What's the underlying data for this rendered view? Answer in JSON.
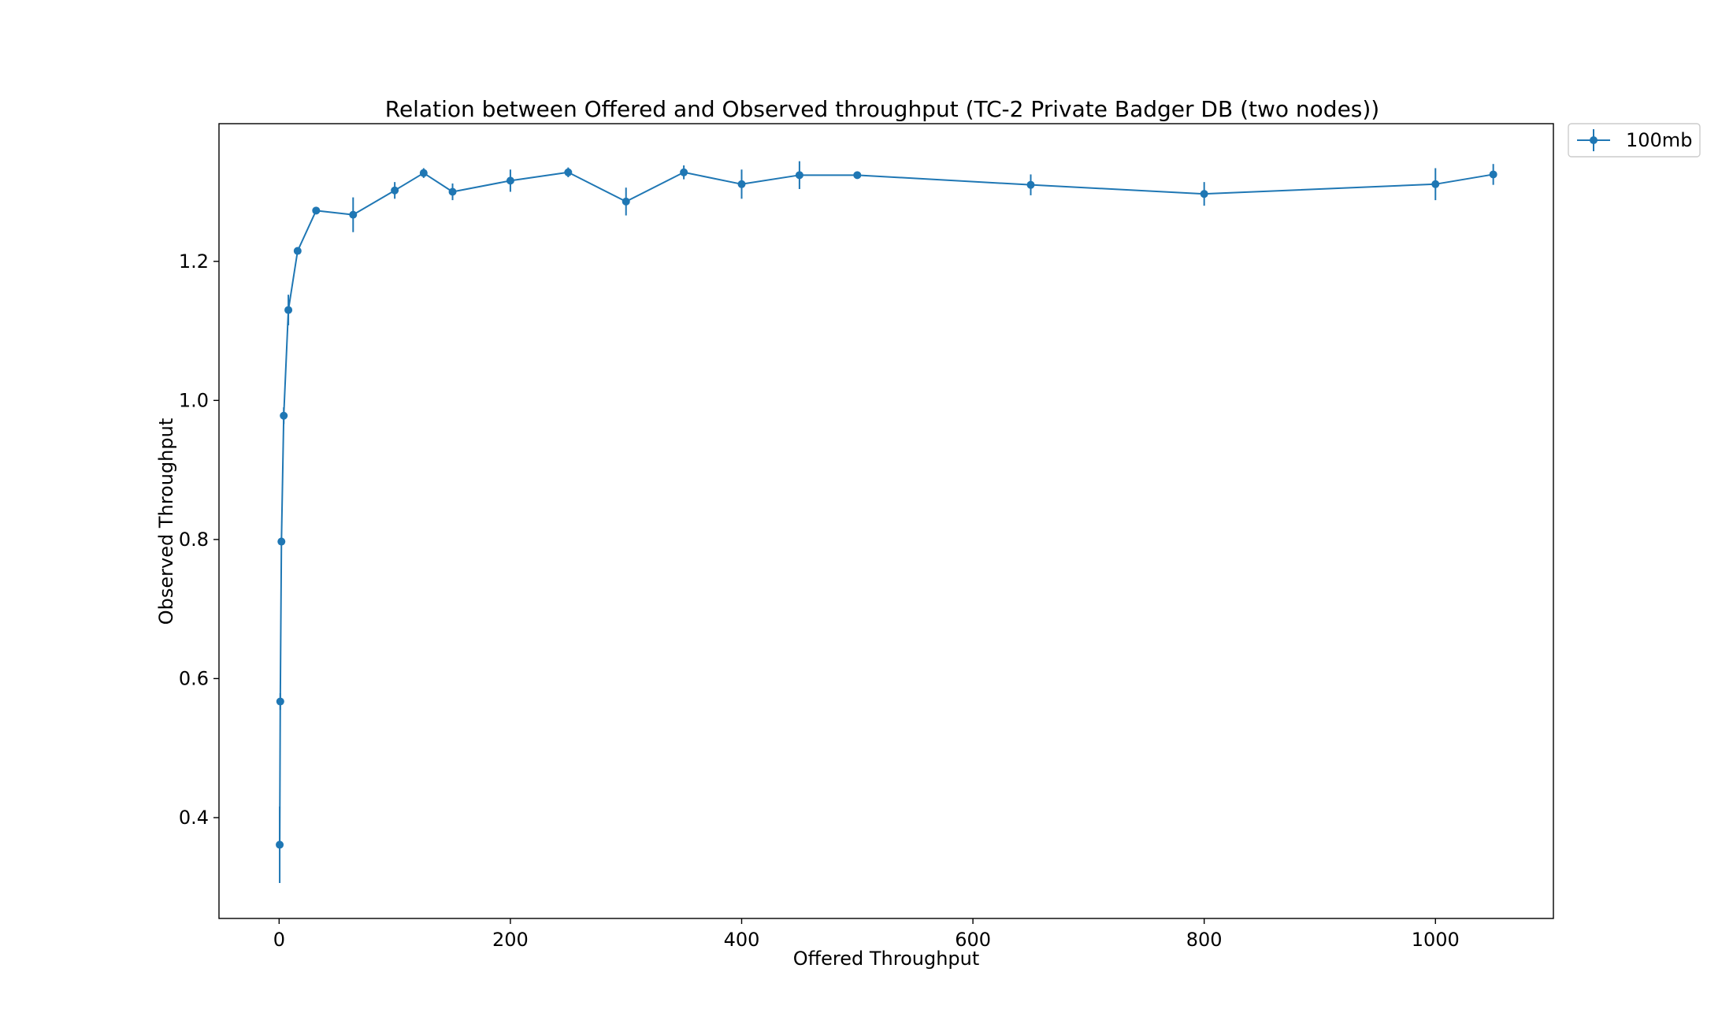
{
  "chart_data": {
    "type": "line",
    "title": "Relation between Offered and Observed throughput (TC-2  Private Badger DB (two nodes))",
    "xlabel": "Offered Throughput",
    "ylabel": "Observed Throughput",
    "xlim": [
      -52,
      1102
    ],
    "ylim": [
      0.255,
      1.398
    ],
    "xticks": [
      0,
      200,
      400,
      600,
      800,
      1000
    ],
    "yticks": [
      0.4,
      0.6,
      0.8,
      1.0,
      1.2
    ],
    "xtick_labels": [
      "0",
      "200",
      "400",
      "600",
      "800",
      "1000"
    ],
    "ytick_labels": [
      "0.4",
      "0.6",
      "0.8",
      "1.0",
      "1.2"
    ],
    "grid": false,
    "legend_position": "outside-top-right",
    "series": [
      {
        "name": "100mb",
        "color": "#1f77b4",
        "marker": "circle",
        "points": [
          {
            "x": 0.5,
            "y": 0.361,
            "err": 0.055
          },
          {
            "x": 1,
            "y": 0.567,
            "err": 0.012
          },
          {
            "x": 2,
            "y": 0.797,
            "err": 0.006
          },
          {
            "x": 4,
            "y": 0.978,
            "err": 0.012
          },
          {
            "x": 8,
            "y": 1.13,
            "err": 0.022
          },
          {
            "x": 16,
            "y": 1.215,
            "err": 0.005
          },
          {
            "x": 32,
            "y": 1.273,
            "err": 0.004
          },
          {
            "x": 64,
            "y": 1.267,
            "err": 0.025
          },
          {
            "x": 100,
            "y": 1.302,
            "err": 0.012
          },
          {
            "x": 125,
            "y": 1.327,
            "err": 0.007
          },
          {
            "x": 150,
            "y": 1.3,
            "err": 0.012
          },
          {
            "x": 200,
            "y": 1.316,
            "err": 0.016
          },
          {
            "x": 250,
            "y": 1.328,
            "err": 0.007
          },
          {
            "x": 300,
            "y": 1.286,
            "err": 0.02
          },
          {
            "x": 350,
            "y": 1.328,
            "err": 0.01
          },
          {
            "x": 400,
            "y": 1.311,
            "err": 0.021
          },
          {
            "x": 450,
            "y": 1.324,
            "err": 0.02
          },
          {
            "x": 500,
            "y": 1.324,
            "err": 0.005
          },
          {
            "x": 650,
            "y": 1.31,
            "err": 0.015
          },
          {
            "x": 800,
            "y": 1.297,
            "err": 0.017
          },
          {
            "x": 1000,
            "y": 1.311,
            "err": 0.023
          },
          {
            "x": 1050,
            "y": 1.325,
            "err": 0.015
          }
        ]
      }
    ]
  }
}
